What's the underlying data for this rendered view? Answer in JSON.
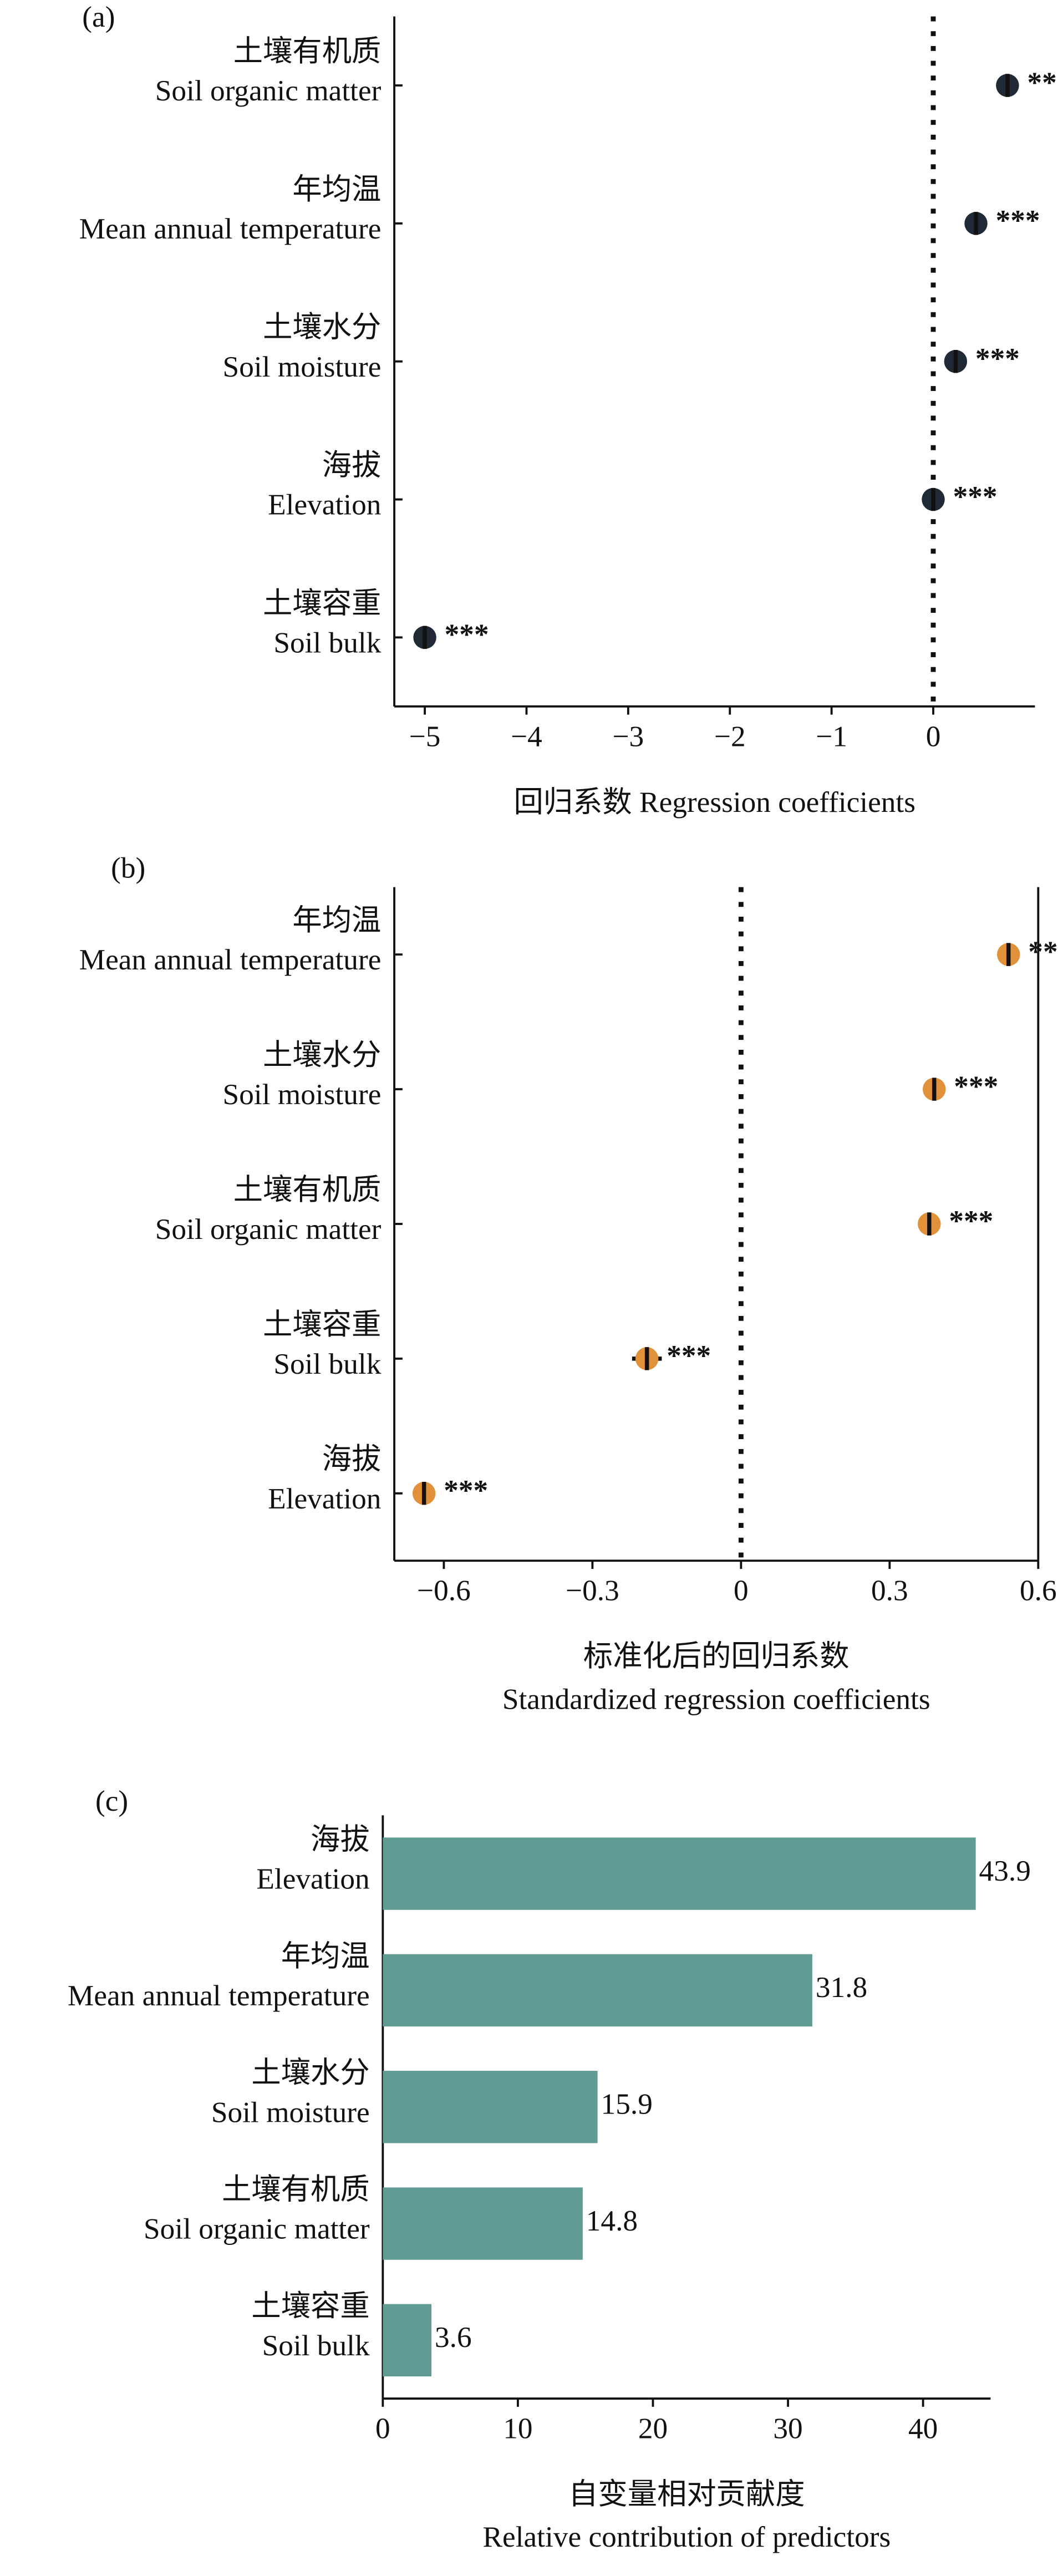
{
  "chart_data": [
    {
      "type": "dot",
      "panel_label": "(a)",
      "categories": [
        {
          "zh": "土壤有机质",
          "en": "Soil organic matter"
        },
        {
          "zh": "年均温",
          "en": "Mean annual temperature"
        },
        {
          "zh": "土壤水分",
          "en": "Soil moisture"
        },
        {
          "zh": "海拔",
          "en": "Elevation"
        },
        {
          "zh": "土壤容重",
          "en": "Soil bulk"
        }
      ],
      "values": [
        0.73,
        0.42,
        0.22,
        0.0,
        -5.0
      ],
      "significance": [
        "***",
        "***",
        "***",
        "***",
        "***"
      ],
      "color": "#1f2a36",
      "xlim": [
        -5.3,
        1.0
      ],
      "xticks": [
        {
          "value": -5,
          "label": "−5"
        },
        {
          "value": -4,
          "label": "−4"
        },
        {
          "value": -3,
          "label": "−3"
        },
        {
          "value": -2,
          "label": "−2"
        },
        {
          "value": -1,
          "label": "−1"
        },
        0
      ],
      "reference_line": 0,
      "xlabel": [
        "回归系数 Regression coefficients"
      ]
    },
    {
      "type": "dot",
      "panel_label": "(b)",
      "categories": [
        {
          "zh": "年均温",
          "en": "Mean annual temperature"
        },
        {
          "zh": "土壤水分",
          "en": "Soil moisture"
        },
        {
          "zh": "土壤有机质",
          "en": "Soil organic matter"
        },
        {
          "zh": "土壤容重",
          "en": "Soil bulk"
        },
        {
          "zh": "海拔",
          "en": "Elevation"
        }
      ],
      "values": [
        0.54,
        0.39,
        0.38,
        -0.19,
        -0.64
      ],
      "errors": [
        0.005,
        0.005,
        0.005,
        0.03,
        0.005
      ],
      "significance": [
        "***",
        "***",
        "***",
        "***",
        "***"
      ],
      "color": "#e0913a",
      "xlim": [
        -0.7,
        0.6
      ],
      "xticks": [
        {
          "value": -0.6,
          "label": "−0.6"
        },
        {
          "value": -0.3,
          "label": "−0.3"
        },
        0,
        0.3,
        0.6
      ],
      "reference_line": 0,
      "xlabel": [
        "标准化后的回归系数",
        "Standardized regression coefficients"
      ]
    },
    {
      "type": "bar",
      "panel_label": "(c)",
      "categories": [
        {
          "zh": "海拔",
          "en": "Elevation"
        },
        {
          "zh": "年均温",
          "en": "Mean annual temperature"
        },
        {
          "zh": "土壤水分",
          "en": "Soil moisture"
        },
        {
          "zh": "土壤有机质",
          "en": "Soil organic matter"
        },
        {
          "zh": "土壤容重",
          "en": "Soil bulk"
        }
      ],
      "values": [
        43.9,
        31.8,
        15.9,
        14.8,
        3.6
      ],
      "color": "#609b94",
      "xlim": [
        0,
        45
      ],
      "xticks": [
        0,
        10,
        20,
        30,
        40
      ],
      "xlabel": [
        "自变量相对贡献度",
        "Relative contribution of predictors"
      ]
    }
  ]
}
